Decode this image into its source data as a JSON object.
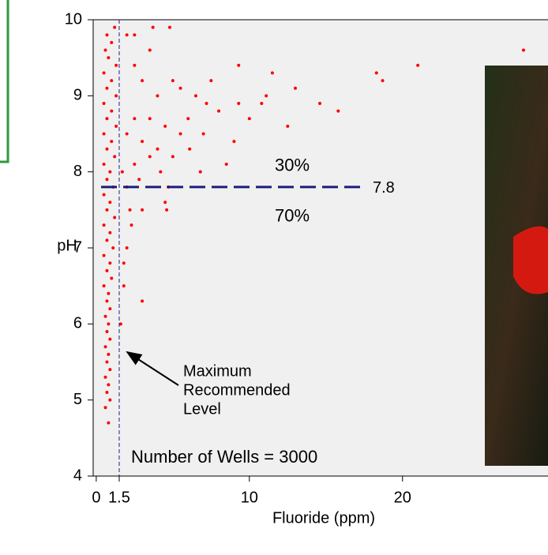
{
  "chart_data": {
    "type": "scatter",
    "x_label": "Fluoride (ppm)",
    "y_label": "pH",
    "xlim": [
      -0.2,
      29.5
    ],
    "ylim": [
      4,
      10
    ],
    "xticks": [
      0,
      1.5,
      10,
      20
    ],
    "yticks": [
      4,
      5,
      6,
      7,
      8,
      9,
      10
    ],
    "color": "#ff0000",
    "threshold": {
      "value": 7.8,
      "above": "30%",
      "below": "70%"
    },
    "limit": {
      "value": 1.5,
      "note": [
        "Maximum",
        "Recommended",
        "Level"
      ]
    },
    "count_note": "Number of  Wells = 3000",
    "x": [
      0.8,
      0.6,
      0.9,
      0.7,
      0.8,
      0.6,
      0.9,
      0.7,
      0.8,
      0.6,
      0.9,
      0.7,
      0.8,
      0.6,
      0.9,
      0.7,
      0.8,
      0.5,
      1.0,
      0.7,
      0.9,
      0.5,
      1.1,
      0.7,
      0.9,
      0.5,
      1.2,
      0.7,
      0.9,
      0.5,
      1.1,
      0.7,
      0.9,
      0.5,
      1.2,
      0.7,
      1.0,
      0.5,
      1.3,
      0.7,
      1.0,
      0.5,
      1.3,
      0.7,
      1.0,
      0.5,
      1.3,
      0.8,
      0.6,
      1.0,
      0.7,
      1.2,
      1.6,
      1.8,
      1.8,
      2.0,
      2.2,
      2.0,
      4.5,
      4.6,
      3.0,
      1.7,
      2.5,
      3.5,
      4.2,
      5.0,
      6.1,
      7.0,
      8.5,
      7.2,
      8.0,
      9.0,
      9.3,
      10.0,
      11.1,
      11.5,
      13.0,
      14.6,
      15.8,
      18.3,
      18.7,
      21.0,
      10.8,
      12.5,
      27.9,
      9.3,
      5.0,
      4.0,
      3.0,
      2.5,
      3.5,
      4.8,
      3.7,
      2.5,
      2.0,
      5.5,
      6.5,
      7.5,
      6.0,
      5.5,
      4.5,
      3.5,
      2.5,
      2.0,
      3.0,
      4.0,
      6.8,
      2.8,
      3.0,
      2.3,
      4.7
    ],
    "y": [
      4.7,
      4.9,
      5.0,
      5.1,
      5.2,
      5.3,
      5.4,
      5.5,
      5.6,
      5.7,
      5.8,
      5.9,
      6.0,
      6.1,
      6.2,
      6.3,
      6.4,
      6.5,
      6.6,
      6.7,
      6.8,
      6.9,
      7.0,
      7.1,
      7.2,
      7.3,
      7.4,
      7.5,
      7.6,
      7.7,
      7.8,
      7.9,
      8.0,
      8.1,
      8.2,
      8.3,
      8.4,
      8.5,
      8.6,
      8.7,
      8.8,
      8.9,
      9.0,
      9.1,
      9.2,
      9.3,
      9.4,
      9.5,
      9.6,
      9.7,
      9.8,
      9.9,
      6.0,
      6.5,
      6.8,
      7.0,
      7.5,
      7.8,
      7.6,
      7.5,
      6.3,
      8.0,
      8.1,
      8.2,
      8.0,
      8.2,
      8.3,
      8.5,
      8.1,
      8.9,
      8.8,
      8.4,
      8.9,
      8.7,
      9.0,
      9.3,
      9.1,
      8.9,
      8.8,
      9.3,
      9.2,
      9.4,
      8.9,
      8.6,
      9.6,
      9.4,
      9.2,
      9.0,
      9.2,
      9.4,
      9.6,
      9.9,
      9.9,
      9.8,
      9.8,
      9.1,
      9.0,
      9.2,
      8.7,
      8.5,
      8.6,
      8.7,
      8.7,
      8.5,
      8.4,
      8.3,
      8.0,
      7.9,
      7.5,
      7.3,
      7.8
    ]
  }
}
